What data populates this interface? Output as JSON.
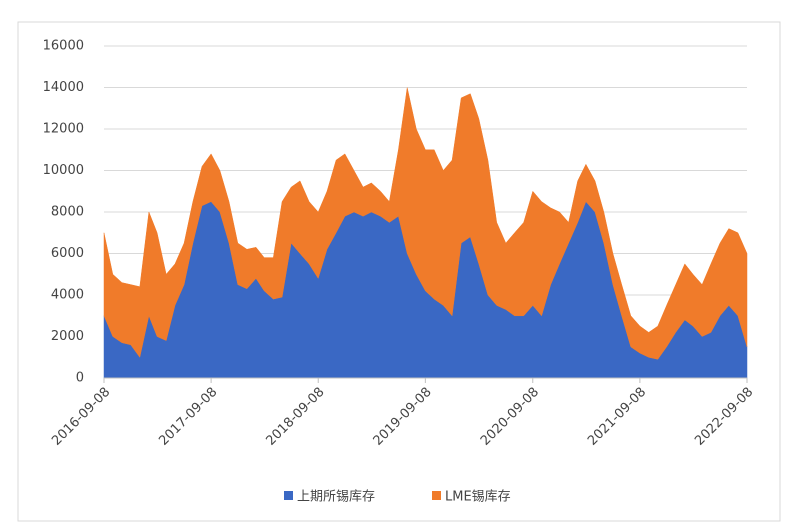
{
  "chart_data": {
    "type": "stacked-area",
    "x": [
      "2016-09-08",
      "2016-10-08",
      "2016-11-08",
      "2016-12-08",
      "2017-01-08",
      "2017-02-08",
      "2017-03-08",
      "2017-04-08",
      "2017-05-08",
      "2017-06-08",
      "2017-07-08",
      "2017-08-08",
      "2017-09-08",
      "2017-10-08",
      "2017-11-08",
      "2017-12-08",
      "2018-01-08",
      "2018-02-08",
      "2018-03-08",
      "2018-04-08",
      "2018-05-08",
      "2018-06-08",
      "2018-07-08",
      "2018-08-08",
      "2018-09-08",
      "2018-10-08",
      "2018-11-08",
      "2018-12-08",
      "2019-01-08",
      "2019-02-08",
      "2019-03-08",
      "2019-04-08",
      "2019-05-08",
      "2019-06-08",
      "2019-07-08",
      "2019-08-08",
      "2019-09-08",
      "2019-10-08",
      "2019-11-08",
      "2019-12-08",
      "2020-01-08",
      "2020-02-08",
      "2020-03-08",
      "2020-04-08",
      "2020-05-08",
      "2020-06-08",
      "2020-07-08",
      "2020-08-08",
      "2020-09-08",
      "2020-10-08",
      "2020-11-08",
      "2020-12-08",
      "2021-01-08",
      "2021-02-08",
      "2021-03-08",
      "2021-04-08",
      "2021-05-08",
      "2021-06-08",
      "2021-07-08",
      "2021-08-08",
      "2021-09-08",
      "2021-10-08",
      "2021-11-08",
      "2021-12-08",
      "2022-01-08",
      "2022-02-08",
      "2022-03-08",
      "2022-04-08",
      "2022-05-08",
      "2022-06-08",
      "2022-07-08",
      "2022-08-08",
      "2022-09-08"
    ],
    "series": [
      {
        "name": "上期所锡库存",
        "color": "#3a68c4",
        "values": [
          3000,
          2000,
          1700,
          1600,
          1000,
          3000,
          2000,
          1800,
          3500,
          4500,
          6500,
          8300,
          8500,
          8000,
          6500,
          4500,
          4300,
          4800,
          4200,
          3800,
          3900,
          6500,
          6000,
          5500,
          4800,
          6200,
          7000,
          7800,
          8000,
          7800,
          8000,
          7800,
          7500,
          7800,
          6000,
          5000,
          4200,
          3800,
          3500,
          3000,
          6500,
          6800,
          5500,
          4000,
          3500,
          3300,
          3000,
          3000,
          3500,
          3000,
          4500,
          5500,
          6500,
          7500,
          8500,
          8000,
          6500,
          4500,
          3000,
          1500,
          1200,
          1000,
          900,
          1500,
          2200,
          2800,
          2500,
          2000,
          2200,
          3000,
          3500,
          3000,
          1500
        ]
      },
      {
        "name": "LME锡库存",
        "color": "#f07b2a",
        "values": [
          4000,
          3000,
          2900,
          2900,
          3400,
          5000,
          5000,
          3200,
          2000,
          2000,
          2000,
          1900,
          2300,
          2000,
          2000,
          2000,
          1900,
          1500,
          1600,
          2000,
          4600,
          2700,
          3500,
          3000,
          3200,
          2800,
          3500,
          3000,
          2000,
          1400,
          1400,
          1200,
          1000,
          3200,
          8000,
          7000,
          6800,
          7200,
          6500,
          7500,
          7000,
          6900,
          7000,
          6500,
          4000,
          3200,
          4000,
          4500,
          5500,
          5500,
          3700,
          2500,
          1000,
          2000,
          1800,
          1500,
          1500,
          1500,
          1500,
          1500,
          1300,
          1200,
          1600,
          2000,
          2300,
          2700,
          2500,
          2500,
          3300,
          3500,
          3700,
          4000,
          4500
        ]
      }
    ],
    "xlim": [
      "2016-09-08",
      "2022-09-08"
    ],
    "xticks": [
      "2016-09-08",
      "2017-09-08",
      "2018-09-08",
      "2019-09-08",
      "2020-09-08",
      "2021-09-08",
      "2022-09-08"
    ],
    "ylim": [
      0,
      16000
    ],
    "yticks": [
      0,
      2000,
      4000,
      6000,
      8000,
      10000,
      12000,
      14000,
      16000
    ],
    "grid": true,
    "legend": "bottom"
  }
}
